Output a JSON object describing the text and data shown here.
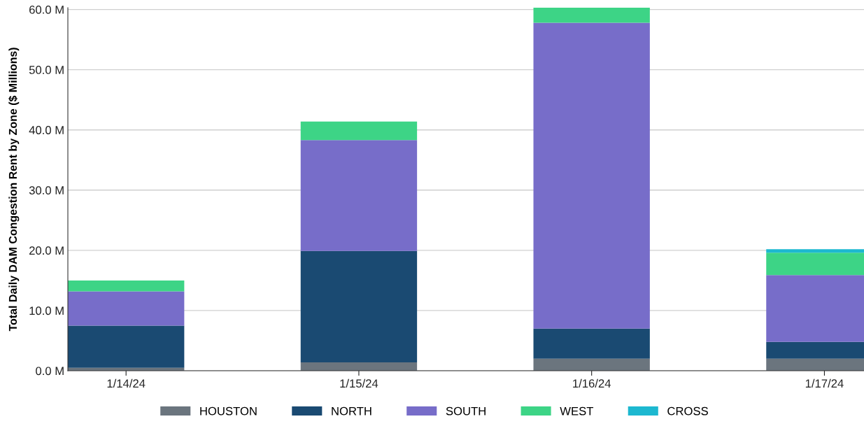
{
  "chart_data": {
    "type": "bar",
    "stacked": true,
    "ylabel": "Total Daily DAM Congestion Rent by Zone ($ Millions)",
    "categories": [
      "1/14/24",
      "1/15/24",
      "1/16/24",
      "1/17/24"
    ],
    "series": [
      {
        "name": "HOUSTON",
        "color": "#6b757e",
        "values": [
          0.5,
          1.4,
          2.0,
          2.0
        ]
      },
      {
        "name": "NORTH",
        "color": "#1a4a72",
        "values": [
          7.0,
          18.5,
          5.0,
          2.8
        ]
      },
      {
        "name": "SOUTH",
        "color": "#776dc9",
        "values": [
          5.7,
          18.4,
          50.8,
          11.1
        ]
      },
      {
        "name": "WEST",
        "color": "#3dd486",
        "values": [
          1.8,
          3.1,
          2.5,
          3.7
        ]
      },
      {
        "name": "CROSS",
        "color": "#1db8d0",
        "values": [
          0,
          0,
          0,
          0.6
        ]
      }
    ],
    "ylim": [
      0,
      60.3
    ],
    "yticks": [
      {
        "value": 0,
        "label": "0.0 M"
      },
      {
        "value": 10,
        "label": "10.0 M"
      },
      {
        "value": 20,
        "label": "20.0 M"
      },
      {
        "value": 30,
        "label": "30.0 M"
      },
      {
        "value": 40,
        "label": "40.0 M"
      },
      {
        "value": 50,
        "label": "50.0 M"
      },
      {
        "value": 60,
        "label": "60.0 M"
      }
    ],
    "grid": "y",
    "legend": "bottom"
  }
}
